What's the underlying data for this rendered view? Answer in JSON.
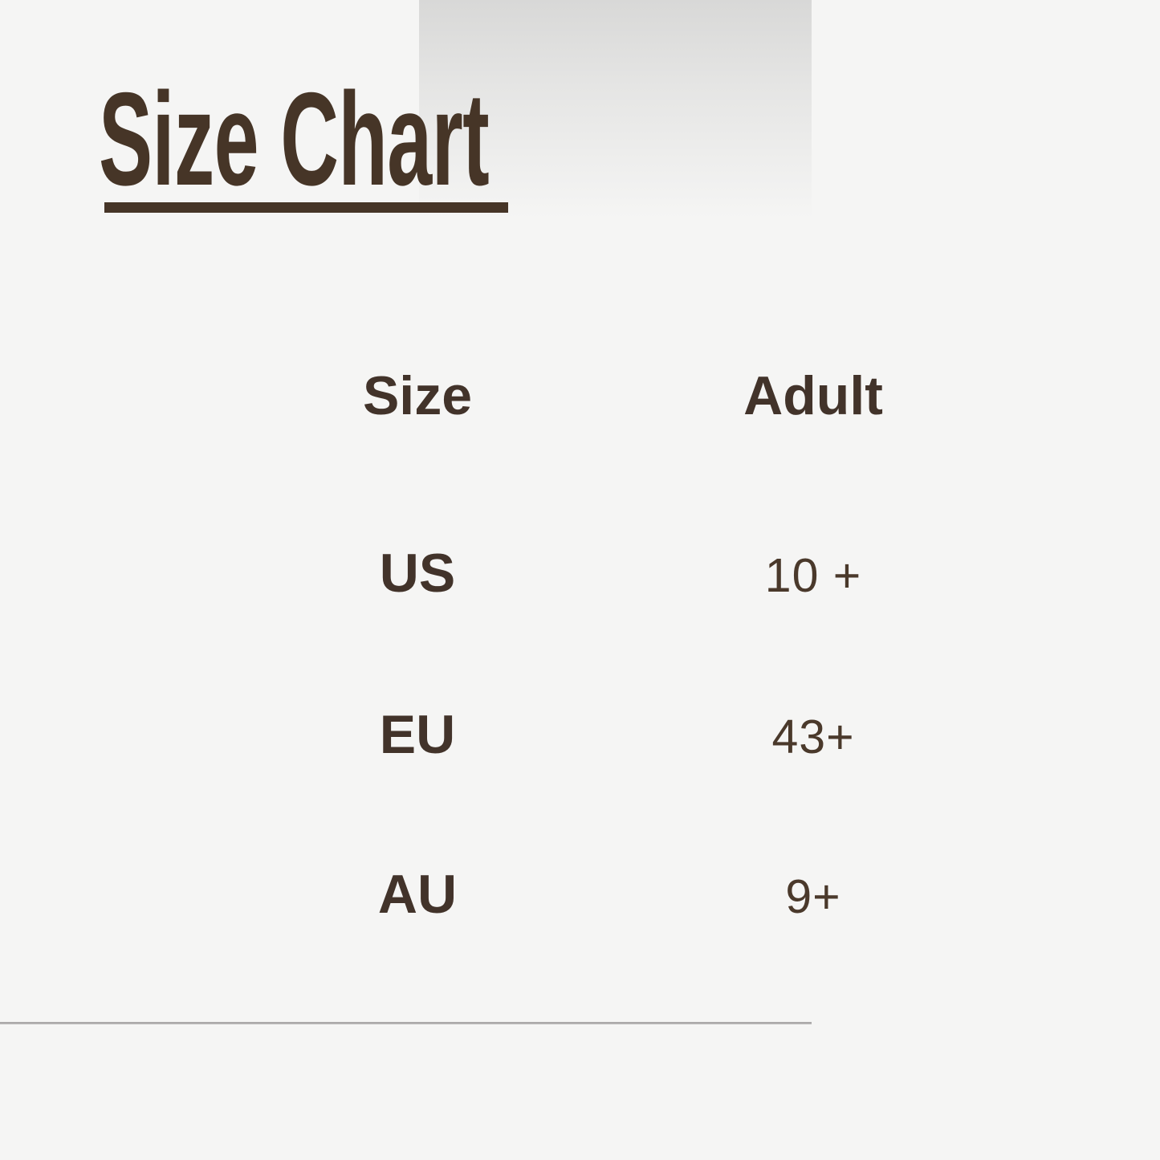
{
  "page": {
    "title": "Size Chart",
    "background_color": "#f5f5f4",
    "accent_color": "#463527",
    "label_color": "#42332a",
    "value_color": "#4a392b",
    "divider_color": "#aeacac",
    "gradient_color": "#d8d8d7"
  },
  "table": {
    "headers": [
      "Size",
      "Adult"
    ],
    "rows": [
      {
        "label": "US",
        "value": "10 +"
      },
      {
        "label": "EU",
        "value": "43+"
      },
      {
        "label": "AU",
        "value": "9+"
      }
    ]
  },
  "chart_data": {
    "type": "table",
    "title": "Size Chart",
    "columns": [
      "Size",
      "Adult"
    ],
    "rows": [
      [
        "US",
        "10 +"
      ],
      [
        "EU",
        "43+"
      ],
      [
        "AU",
        "9+"
      ]
    ]
  }
}
